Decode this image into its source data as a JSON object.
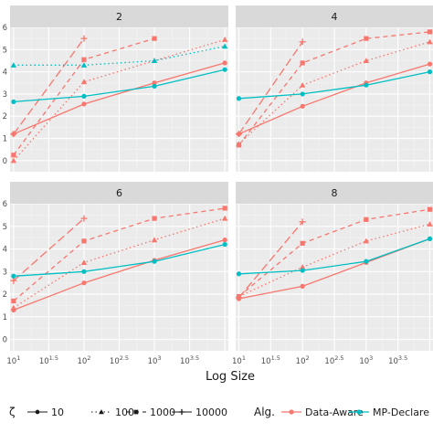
{
  "chart_data": {
    "type": "line",
    "xlabel": "Log Size",
    "ylabel": "",
    "x_scale": "log10",
    "xlim": [
      0.95,
      4.05
    ],
    "ylim": [
      -0.5,
      6.0
    ],
    "x_tick_labels": [
      "10^1",
      "10^1.5",
      "10^2",
      "10^2.5",
      "10^3",
      "10^3.5",
      "10^4"
    ],
    "x_ticks": [
      1,
      1.5,
      2,
      2.5,
      3,
      3.5,
      4
    ],
    "y_ticks": [
      0,
      1,
      2,
      3,
      4,
      5,
      6
    ],
    "y_tick_labels": [
      "0",
      "1",
      "2",
      "3",
      "4",
      "5",
      "6"
    ],
    "grid": true,
    "colors": {
      "Data-Aware": "#F8766D",
      "MP-Declare": "#00BFC4",
      "panel_bg": "#EBEBEB",
      "strip_bg": "#D9D9D9",
      "grid_major": "#FFFFFF"
    },
    "legend": {
      "position": "bottom",
      "zeta_title": "ζ",
      "zeta_entries": [
        {
          "label": "10",
          "linetype": "solid",
          "shape": "circle"
        },
        {
          "label": "100",
          "linetype": "dotted",
          "shape": "triangle"
        },
        {
          "label": "1000",
          "linetype": "dashed",
          "shape": "square"
        },
        {
          "label": "10000",
          "linetype": "longdash",
          "shape": "plus"
        }
      ],
      "alg_title": "Alg.",
      "alg_entries": [
        "Data-Aware",
        "MP-Declare"
      ]
    },
    "panels": [
      {
        "label": "2",
        "series": [
          {
            "alg": "Data-Aware",
            "zeta": "10",
            "x": [
              1,
              2,
              3,
              4
            ],
            "y": [
              1.2,
              2.55,
              3.5,
              4.4
            ]
          },
          {
            "alg": "Data-Aware",
            "zeta": "100",
            "x": [
              1,
              2,
              3,
              4
            ],
            "y": [
              0.0,
              3.55,
              4.5,
              5.45
            ]
          },
          {
            "alg": "Data-Aware",
            "zeta": "1000",
            "x": [
              1,
              2,
              3
            ],
            "y": [
              0.25,
              4.55,
              5.5
            ]
          },
          {
            "alg": "Data-Aware",
            "zeta": "10000",
            "x": [
              1,
              2
            ],
            "y": [
              1.2,
              5.5
            ]
          },
          {
            "alg": "MP-Declare",
            "zeta": "10",
            "x": [
              1,
              2,
              3,
              4
            ],
            "y": [
              2.65,
              2.9,
              3.35,
              4.1
            ]
          },
          {
            "alg": "MP-Declare",
            "zeta": "100",
            "x": [
              1,
              2,
              3,
              4
            ],
            "y": [
              4.3,
              4.3,
              4.5,
              5.15
            ]
          }
        ]
      },
      {
        "label": "4",
        "series": [
          {
            "alg": "Data-Aware",
            "zeta": "10",
            "x": [
              1,
              2,
              3,
              4
            ],
            "y": [
              1.2,
              2.45,
              3.5,
              4.35
            ]
          },
          {
            "alg": "Data-Aware",
            "zeta": "100",
            "x": [
              1,
              2,
              3,
              4
            ],
            "y": [
              0.75,
              3.4,
              4.5,
              5.35
            ]
          },
          {
            "alg": "Data-Aware",
            "zeta": "1000",
            "x": [
              1,
              2,
              3,
              4
            ],
            "y": [
              0.7,
              4.4,
              5.5,
              5.8
            ]
          },
          {
            "alg": "Data-Aware",
            "zeta": "10000",
            "x": [
              1,
              2
            ],
            "y": [
              1.2,
              5.35
            ]
          },
          {
            "alg": "MP-Declare",
            "zeta": "10",
            "x": [
              1,
              2,
              3,
              4
            ],
            "y": [
              2.8,
              3.0,
              3.4,
              4.0
            ]
          }
        ]
      },
      {
        "label": "6",
        "series": [
          {
            "alg": "Data-Aware",
            "zeta": "10",
            "x": [
              1,
              2,
              3,
              4
            ],
            "y": [
              1.3,
              2.5,
              3.5,
              4.4
            ]
          },
          {
            "alg": "Data-Aware",
            "zeta": "100",
            "x": [
              1,
              2,
              3,
              4
            ],
            "y": [
              1.4,
              3.4,
              4.4,
              5.35
            ]
          },
          {
            "alg": "Data-Aware",
            "zeta": "1000",
            "x": [
              1,
              2,
              3,
              4
            ],
            "y": [
              1.7,
              4.35,
              5.35,
              5.8
            ]
          },
          {
            "alg": "Data-Aware",
            "zeta": "10000",
            "x": [
              1,
              2
            ],
            "y": [
              2.6,
              5.35
            ]
          },
          {
            "alg": "MP-Declare",
            "zeta": "10",
            "x": [
              1,
              2,
              3,
              4
            ],
            "y": [
              2.8,
              3.0,
              3.45,
              4.2
            ]
          }
        ]
      },
      {
        "label": "8",
        "series": [
          {
            "alg": "Data-Aware",
            "zeta": "10",
            "x": [
              1,
              2,
              3,
              4
            ],
            "y": [
              1.8,
              2.35,
              3.4,
              4.45
            ]
          },
          {
            "alg": "Data-Aware",
            "zeta": "100",
            "x": [
              1,
              2,
              3,
              4
            ],
            "y": [
              1.9,
              3.2,
              4.35,
              5.1
            ]
          },
          {
            "alg": "Data-Aware",
            "zeta": "1000",
            "x": [
              1,
              2,
              3,
              4
            ],
            "y": [
              1.9,
              4.25,
              5.3,
              5.75
            ]
          },
          {
            "alg": "Data-Aware",
            "zeta": "10000",
            "x": [
              1,
              2
            ],
            "y": [
              1.85,
              5.2
            ]
          },
          {
            "alg": "MP-Declare",
            "zeta": "10",
            "x": [
              1,
              2,
              3,
              4
            ],
            "y": [
              2.9,
              3.05,
              3.45,
              4.45
            ]
          }
        ]
      }
    ]
  }
}
